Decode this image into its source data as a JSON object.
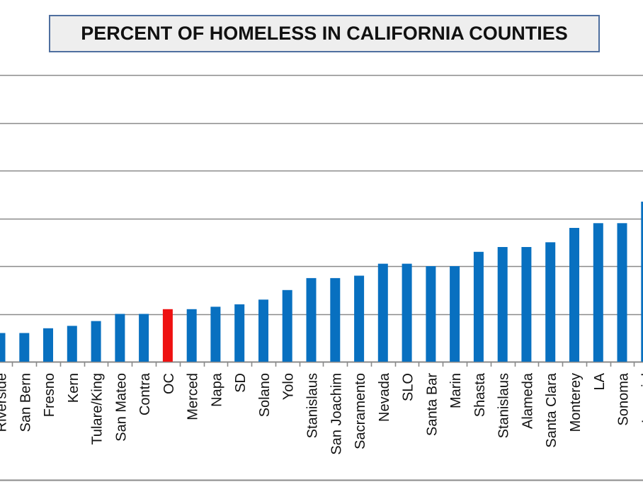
{
  "chart_data": {
    "type": "bar",
    "title": "PERCENT OF HOMELESS IN CALIFORNIA COUNTIES",
    "xlabel": "",
    "ylabel": "",
    "grid": true,
    "legend": "none",
    "categories": [
      "Riverside",
      "San Bern",
      "Fresno",
      "Kern",
      "Tulare/King",
      "San Mateo",
      "Contra",
      "OC",
      "Merced",
      "Napa",
      "SD",
      "Solano",
      "Yolo",
      "Stanislaus",
      "San Joachim",
      "Sacramento",
      "Nevada",
      "SLO",
      "Santa Bar",
      "Marin",
      "Shasta",
      "Stanislaus",
      "Alameda",
      "Santa Clara",
      "Monterey",
      "LA",
      "Sonoma",
      "Imperial"
    ],
    "values": [
      0.6,
      0.6,
      0.7,
      0.75,
      0.85,
      1.0,
      1.0,
      1.1,
      1.1,
      1.15,
      1.2,
      1.3,
      1.5,
      1.75,
      1.75,
      1.8,
      2.05,
      2.05,
      2.0,
      2.0,
      2.3,
      2.4,
      2.4,
      2.5,
      2.8,
      2.9,
      2.9,
      3.35
    ],
    "highlight_category": "OC",
    "ylim": [
      0,
      6
    ]
  },
  "colors": {
    "bar": "#0870c0",
    "highlight": "#ee1111",
    "grid": "#8a8a8a",
    "text": "#111111"
  }
}
